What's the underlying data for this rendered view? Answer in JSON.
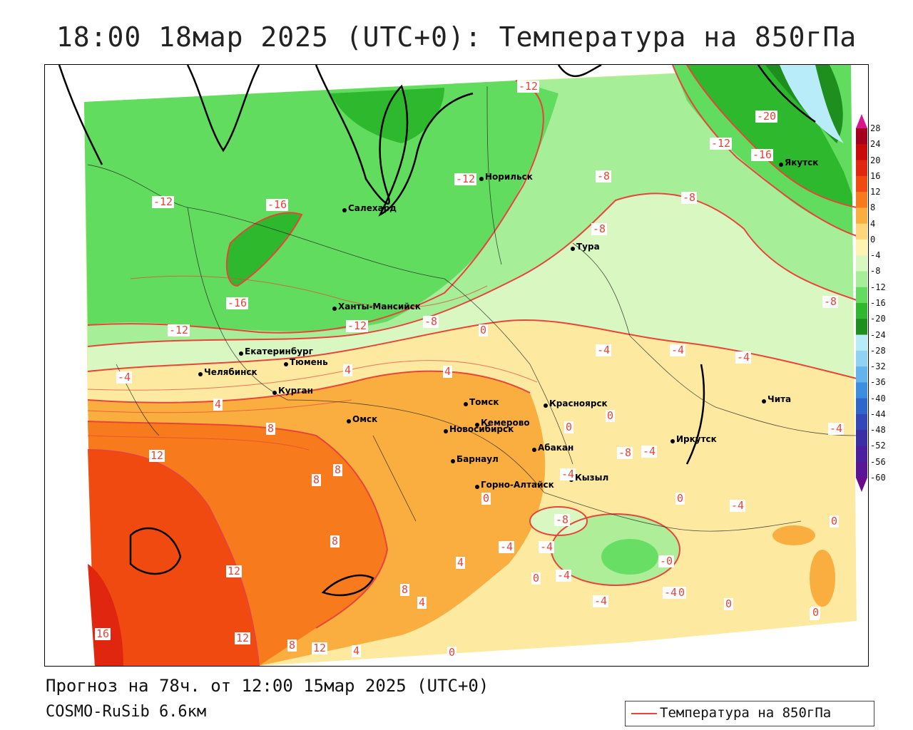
{
  "title": "18:00 18мар 2025 (UTC+0): Температура на 850гПа",
  "footer": {
    "forecast": "Прогноз на 78ч. от 12:00 15мар 2025 (UTC+0)",
    "model": "COSMO-RuSib 6.6км"
  },
  "legend": {
    "label": "Температура на 850гПа",
    "color": "#e8443a"
  },
  "colorbar": {
    "labels": [
      "28",
      "24",
      "20",
      "16",
      "12",
      "8",
      "4",
      "0",
      "-4",
      "-8",
      "-12",
      "-16",
      "-20",
      "-24",
      "-28",
      "-32",
      "-36",
      "-40",
      "-44",
      "-48",
      "-52",
      "-56",
      "-60"
    ],
    "colors": [
      "#a4001e",
      "#c80a0a",
      "#e0260e",
      "#f04a10",
      "#f77a1c",
      "#fbae40",
      "#fdd77a",
      "#fff3b4",
      "#d9f7c0",
      "#a6ee98",
      "#62dc5e",
      "#2eb82e",
      "#1e8f1e",
      "#b8ecf8",
      "#8fd2f2",
      "#63b4ec",
      "#3c8ee0",
      "#2f66cc",
      "#3446b8",
      "#3a2ea6",
      "#4a1e9c",
      "#5a1494",
      "#6a0c8c"
    ]
  },
  "cities": [
    {
      "name": "Норильск"
    },
    {
      "name": "Якутск"
    },
    {
      "name": "Салехард"
    },
    {
      "name": "Тура"
    },
    {
      "name": "Ханты-Мансийск"
    },
    {
      "name": "Екатеринбург"
    },
    {
      "name": "Тюмень"
    },
    {
      "name": "Челябинск"
    },
    {
      "name": "Курган"
    },
    {
      "name": "Омск"
    },
    {
      "name": "Новосибирск"
    },
    {
      "name": "Томск"
    },
    {
      "name": "Красноярск"
    },
    {
      "name": "Кемерово"
    },
    {
      "name": "Абакан"
    },
    {
      "name": "Барнаул"
    },
    {
      "name": "Иркутск"
    },
    {
      "name": "Горно-Алтайск"
    },
    {
      "name": "Кызыл"
    },
    {
      "name": "Чита"
    }
  ],
  "contour_labels": [
    {
      "text": "-12"
    },
    {
      "text": "-20"
    },
    {
      "text": "-12"
    },
    {
      "text": "-16"
    },
    {
      "text": "-12"
    },
    {
      "text": "-8"
    },
    {
      "text": "-12"
    },
    {
      "text": "-16"
    },
    {
      "text": "-8"
    },
    {
      "text": "-8"
    },
    {
      "text": "-16"
    },
    {
      "text": "-12"
    },
    {
      "text": "-8"
    },
    {
      "text": "0"
    },
    {
      "text": "-12"
    },
    {
      "text": "-8"
    },
    {
      "text": "-4"
    },
    {
      "text": "-4"
    },
    {
      "text": "-4"
    },
    {
      "text": "-4"
    },
    {
      "text": "4"
    },
    {
      "text": "4"
    },
    {
      "text": "4"
    },
    {
      "text": "8"
    },
    {
      "text": "0"
    },
    {
      "text": "0"
    },
    {
      "text": "-4"
    },
    {
      "text": "12"
    },
    {
      "text": "8"
    },
    {
      "text": "8"
    },
    {
      "text": "-8"
    },
    {
      "text": "-4"
    },
    {
      "text": "-4"
    },
    {
      "text": "0"
    },
    {
      "text": "-4"
    },
    {
      "text": "8"
    },
    {
      "text": "0"
    },
    {
      "text": "-8"
    },
    {
      "text": "-4"
    },
    {
      "text": "-4"
    },
    {
      "text": "-4"
    },
    {
      "text": "0"
    },
    {
      "text": "12"
    },
    {
      "text": "4"
    },
    {
      "text": "0"
    },
    {
      "text": "-4"
    },
    {
      "text": "0"
    },
    {
      "text": "8"
    },
    {
      "text": "4"
    },
    {
      "text": "-4"
    },
    {
      "text": "0"
    },
    {
      "text": "0"
    },
    {
      "text": "16"
    },
    {
      "text": "12"
    },
    {
      "text": "0"
    },
    {
      "text": "8"
    },
    {
      "text": "12"
    },
    {
      "text": "4"
    },
    {
      "text": "0"
    },
    {
      "text": "-0"
    }
  ]
}
